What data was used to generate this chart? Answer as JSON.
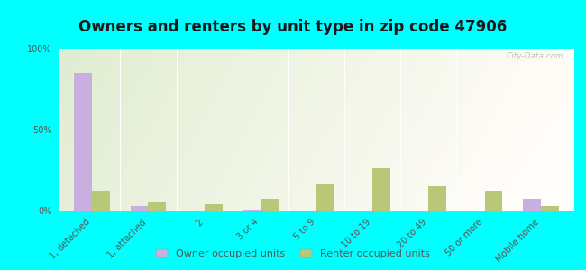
{
  "title": "Owners and renters by unit type in zip code 47906",
  "categories": [
    "1, detached",
    "1, attached",
    "2",
    "3 or 4",
    "5 to 9",
    "10 to 19",
    "20 to 49",
    "50 or more",
    "Mobile home"
  ],
  "owner_values": [
    85,
    3,
    0,
    0.5,
    0,
    0,
    0,
    0,
    7
  ],
  "renter_values": [
    12,
    5,
    4,
    7,
    16,
    26,
    15,
    12,
    3
  ],
  "owner_color": "#c9aee0",
  "renter_color": "#b8c878",
  "bg_color_topleft": "#c8ddb0",
  "bg_color_center": "#eef5e8",
  "bg_color_white": "#f8fcf4",
  "outer_bg": "#00ffff",
  "ylim": [
    0,
    100
  ],
  "yticks": [
    0,
    50,
    100
  ],
  "ytick_labels": [
    "0%",
    "50%",
    "100%"
  ],
  "bar_width": 0.32,
  "legend_owner": "Owner occupied units",
  "legend_renter": "Renter occupied units",
  "watermark": "City-Data.com",
  "title_fontsize": 12,
  "tick_fontsize": 7,
  "legend_fontsize": 8
}
